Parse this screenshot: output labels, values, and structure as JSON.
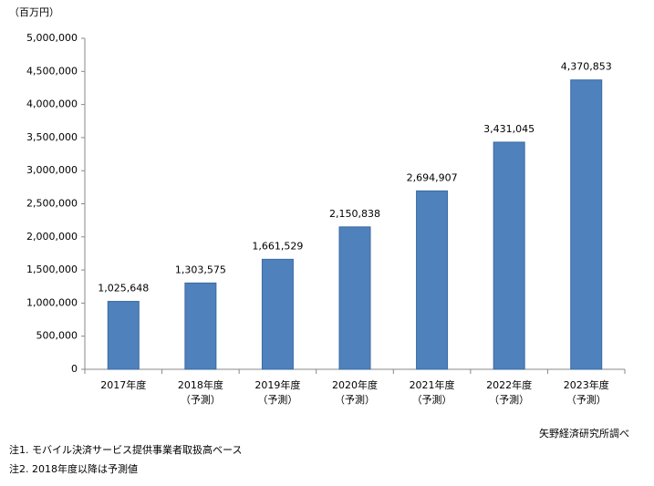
{
  "chart_data": {
    "type": "bar",
    "y_label": "（百万円）",
    "categories": [
      [
        "2017年度"
      ],
      [
        "2018年度",
        "（予測）"
      ],
      [
        "2019年度",
        "（予測）"
      ],
      [
        "2020年度",
        "（予測）"
      ],
      [
        "2021年度",
        "（予測）"
      ],
      [
        "2022年度",
        "（予測）"
      ],
      [
        "2023年度",
        "（予測）"
      ]
    ],
    "values": [
      1025648,
      1303575,
      1661529,
      2150838,
      2694907,
      3431045,
      4370853
    ],
    "value_labels": [
      "1,025,648",
      "1,303,575",
      "1,661,529",
      "2,150,838",
      "2,694,907",
      "3,431,045",
      "4,370,853"
    ],
    "color": "#4f81bd",
    "ylim": [
      0,
      5000000
    ],
    "yticks": [
      0,
      {
        "value": 500000,
        "label": "500,000"
      },
      {
        "value": 1000000,
        "label": "1,000,000"
      },
      {
        "value": 1500000,
        "label": "1,500,000"
      },
      {
        "value": 2000000,
        "label": "2,000,000"
      },
      {
        "value": 2500000,
        "label": "2,500,000"
      },
      {
        "value": 3000000,
        "label": "3,000,000"
      },
      {
        "value": 3500000,
        "label": "3,500,000"
      },
      {
        "value": 4000000,
        "label": "4,000,000"
      },
      {
        "value": 4500000,
        "label": "4,500,000"
      },
      {
        "value": 5000000,
        "label": "5,000,000"
      }
    ],
    "grid": false,
    "source": "矢野経済研究所調べ",
    "notes": [
      "注1. モバイル決済サービス提供事業者取扱高ベース",
      "注2. 2018年度以降は予測値"
    ]
  }
}
